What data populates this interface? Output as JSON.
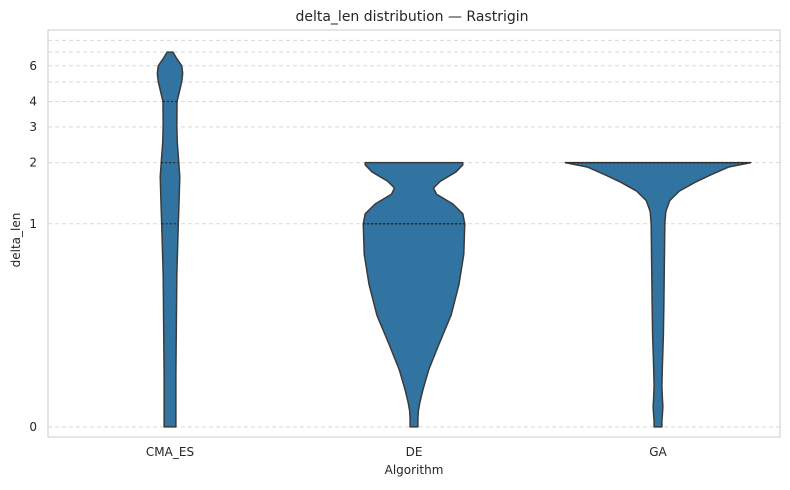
{
  "chart_data": {
    "type": "violin",
    "title": "delta_len distribution — Rastrigin",
    "xlabel": "Algorithm",
    "ylabel": "delta_len",
    "categories": [
      "CMA_ES",
      "DE",
      "GA"
    ],
    "y_scale": "symlog",
    "y_ticks": [
      0,
      1,
      2,
      3,
      4,
      6
    ],
    "ylim": [
      -0.05,
      9
    ],
    "grid": {
      "y": true,
      "x": false,
      "style": "dashed"
    },
    "colors": {
      "violin_fill": "#3274a1",
      "violin_edge": "#3a3a3a",
      "grid": "#d9d9d9",
      "frame": "#cccccc"
    },
    "violins": [
      {
        "name": "CMA_ES",
        "y_range": [
          0,
          7
        ],
        "quartiles": [
          1,
          2,
          4
        ],
        "profile": [
          [
            0,
            0.06
          ],
          [
            0.25,
            0.06
          ],
          [
            0.5,
            0.065
          ],
          [
            0.75,
            0.07
          ],
          [
            1.0,
            0.085
          ],
          [
            1.3,
            0.093
          ],
          [
            1.7,
            0.1
          ],
          [
            2.0,
            0.09
          ],
          [
            2.5,
            0.075
          ],
          [
            3.0,
            0.07
          ],
          [
            4.0,
            0.072
          ],
          [
            5.0,
            0.12
          ],
          [
            5.5,
            0.13
          ],
          [
            6.0,
            0.12
          ],
          [
            6.5,
            0.07
          ],
          [
            7.0,
            0.03
          ]
        ]
      },
      {
        "name": "DE",
        "y_range": [
          0,
          2
        ],
        "quartiles": [
          1,
          1,
          1
        ],
        "profile": [
          [
            0,
            0.04
          ],
          [
            0.04,
            0.04
          ],
          [
            0.08,
            0.045
          ],
          [
            0.12,
            0.06
          ],
          [
            0.18,
            0.09
          ],
          [
            0.28,
            0.15
          ],
          [
            0.4,
            0.25
          ],
          [
            0.55,
            0.38
          ],
          [
            0.7,
            0.46
          ],
          [
            0.85,
            0.51
          ],
          [
            1.0,
            0.52
          ],
          [
            1.12,
            0.5
          ],
          [
            1.25,
            0.4
          ],
          [
            1.4,
            0.23
          ],
          [
            1.5,
            0.2
          ],
          [
            1.62,
            0.27
          ],
          [
            1.8,
            0.43
          ],
          [
            1.95,
            0.5
          ],
          [
            2.0,
            0.5
          ]
        ]
      },
      {
        "name": "GA",
        "y_range": [
          0,
          2
        ],
        "quartiles": [
          2,
          2,
          2
        ],
        "profile": [
          [
            0,
            0.04
          ],
          [
            0.03,
            0.04
          ],
          [
            0.06,
            0.045
          ],
          [
            0.1,
            0.05
          ],
          [
            0.14,
            0.045
          ],
          [
            0.2,
            0.04
          ],
          [
            0.3,
            0.045
          ],
          [
            0.45,
            0.055
          ],
          [
            0.6,
            0.06
          ],
          [
            0.8,
            0.065
          ],
          [
            1.0,
            0.07
          ],
          [
            1.15,
            0.08
          ],
          [
            1.3,
            0.12
          ],
          [
            1.45,
            0.22
          ],
          [
            1.6,
            0.38
          ],
          [
            1.75,
            0.55
          ],
          [
            1.9,
            0.72
          ],
          [
            2.0,
            0.95
          ]
        ]
      }
    ]
  }
}
